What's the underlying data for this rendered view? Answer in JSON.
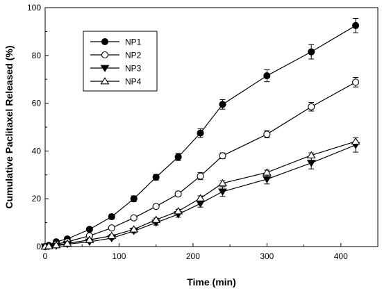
{
  "chart_data": {
    "type": "line",
    "title": "",
    "xlabel": "Time (min)",
    "ylabel": "Cumulative Paclitaxel Released (%)",
    "xlim": [
      0,
      450
    ],
    "ylim": [
      0,
      100
    ],
    "x_ticks": [
      0,
      100,
      200,
      300,
      400
    ],
    "y_ticks": [
      0,
      20,
      40,
      60,
      80,
      100
    ],
    "grid": false,
    "legend_position": "top-left",
    "x": [
      0,
      5,
      15,
      30,
      60,
      90,
      120,
      150,
      180,
      210,
      240,
      300,
      360,
      420
    ],
    "series": [
      {
        "name": "NP1",
        "marker": "filled-circle",
        "values": [
          0,
          0.5,
          2,
          3.2,
          7.2,
          12.5,
          20,
          29,
          37.5,
          47.5,
          59.5,
          71.5,
          81.5,
          92.5
        ],
        "errors": [
          0,
          0.3,
          0.4,
          0.5,
          0.7,
          1,
          1.2,
          1.2,
          1.5,
          1.8,
          2,
          2.5,
          3,
          3
        ]
      },
      {
        "name": "NP2",
        "marker": "open-circle",
        "values": [
          0,
          0.3,
          1,
          2,
          4.5,
          7.8,
          12,
          16.8,
          22,
          29.5,
          38,
          47,
          58.5,
          68.8
        ],
        "errors": [
          0,
          0.2,
          0.3,
          0.4,
          0.5,
          0.6,
          0.7,
          0.8,
          1,
          1.5,
          1.2,
          1.5,
          1.8,
          2
        ]
      },
      {
        "name": "NP3",
        "marker": "filled-triangle-down",
        "values": [
          0,
          0.1,
          0.3,
          1,
          2,
          3.5,
          6.5,
          10,
          13.5,
          18,
          23,
          28.2,
          35,
          42.5
        ],
        "errors": [
          0,
          0.1,
          0.2,
          0.3,
          0.4,
          0.5,
          0.8,
          1,
          1.2,
          1.5,
          2,
          2,
          2.5,
          3
        ]
      },
      {
        "name": "NP4",
        "marker": "open-triangle-up",
        "values": [
          0,
          0.2,
          0.6,
          1.3,
          2.8,
          4.5,
          7.2,
          11.2,
          14.8,
          20.2,
          26.5,
          31,
          38.2,
          44
        ],
        "errors": [
          0,
          0.1,
          0.2,
          0.3,
          0.4,
          0.5,
          0.6,
          0.7,
          0.8,
          1,
          1,
          1,
          1,
          1.5
        ]
      }
    ]
  }
}
